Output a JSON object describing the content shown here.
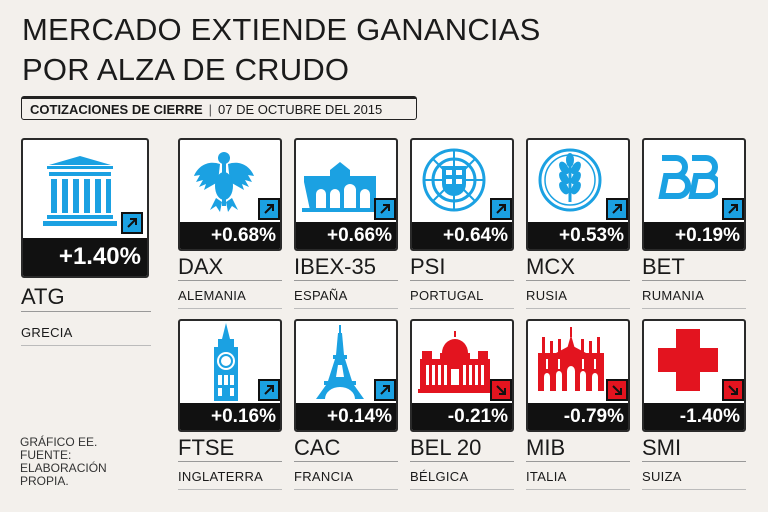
{
  "title": {
    "line1": "MERCADO EXTIENDE GANANCIAS",
    "line2": "POR ALZA DE CRUDO"
  },
  "subtitle": {
    "label": "COTIZACIONES DE CIERRE",
    "separator": "|",
    "date": "07 DE OCTUBRE DEL 2015"
  },
  "colors": {
    "up": "#1ba1e2",
    "down": "#e3141f",
    "dark": "#111111"
  },
  "featured": {
    "index": "ATG",
    "country": "GRECIA",
    "change": "+1.40%",
    "direction": "up",
    "icon": "greek-temple-icon"
  },
  "markets": [
    {
      "index": "DAX",
      "country": "ALEMANIA",
      "change": "+0.68%",
      "direction": "up",
      "icon": "german-eagle-icon"
    },
    {
      "index": "IBEX-35",
      "country": "ESPAÑA",
      "change": "+0.66%",
      "direction": "up",
      "icon": "puerta-de-alcala-icon"
    },
    {
      "index": "PSI",
      "country": "PORTUGAL",
      "change": "+0.64%",
      "direction": "up",
      "icon": "portugal-shield-icon"
    },
    {
      "index": "MCX",
      "country": "RUSIA",
      "change": "+0.53%",
      "direction": "up",
      "icon": "wheat-emblem-icon"
    },
    {
      "index": "BET",
      "country": "RUMANIA",
      "change": "+0.19%",
      "direction": "up",
      "icon": "bet-logo-icon"
    },
    {
      "index": "FTSE",
      "country": "INGLATERRA",
      "change": "+0.16%",
      "direction": "up",
      "icon": "big-ben-icon"
    },
    {
      "index": "CAC",
      "country": "FRANCIA",
      "change": "+0.14%",
      "direction": "up",
      "icon": "eiffel-tower-icon"
    },
    {
      "index": "BEL 20",
      "country": "BÉLGICA",
      "change": "-0.21%",
      "direction": "down",
      "icon": "brussels-palace-icon"
    },
    {
      "index": "MIB",
      "country": "ITALIA",
      "change": "-0.79%",
      "direction": "down",
      "icon": "milan-cathedral-icon"
    },
    {
      "index": "SMI",
      "country": "SUIZA",
      "change": "-1.40%",
      "direction": "down",
      "icon": "swiss-cross-icon"
    }
  ],
  "source": {
    "line1": "GRÁFICO EE.",
    "line2": "FUENTE:",
    "line3": "ELABORACIÓN",
    "line4": "PROPIA."
  }
}
